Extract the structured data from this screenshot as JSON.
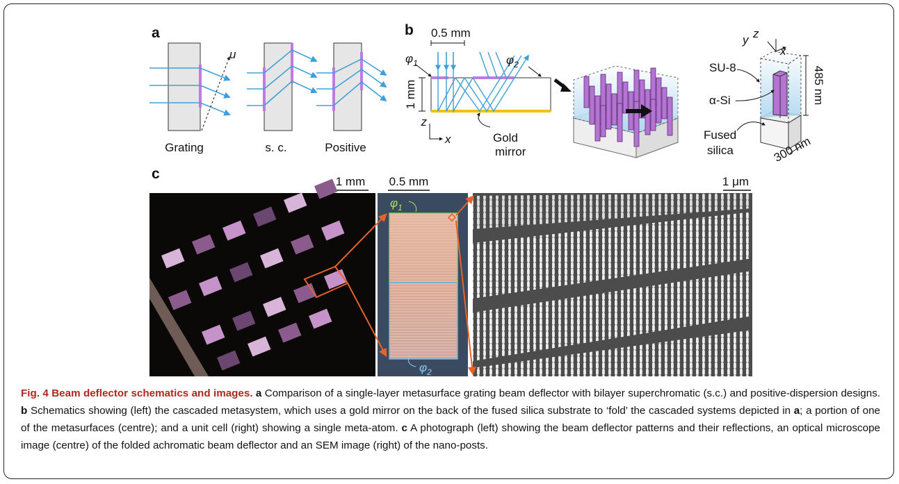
{
  "panel_a": {
    "label": "a",
    "designs": [
      "Grating",
      "s. c.",
      "Positive"
    ],
    "axis": "u"
  },
  "panel_b": {
    "label": "b",
    "scale": "0.5 mm",
    "phi1": {
      "symbol": "φ",
      "sub": "1"
    },
    "phi2": {
      "symbol": "φ",
      "sub": "2"
    },
    "thickness": "1 mm",
    "axis_z": "z",
    "axis_x": "x",
    "mirror": [
      "Gold",
      "mirror"
    ],
    "cell": {
      "su8": "SU-8",
      "asi": "α-Si",
      "height": "485 nm",
      "substrate": [
        "Fused",
        "silica"
      ],
      "width": "300 nm",
      "y": "y",
      "z": "z",
      "x": "x"
    }
  },
  "panel_c": {
    "label": "c",
    "scale_left": "1 mm",
    "scale_centre": "0.5 mm",
    "scale_right": "1 μm",
    "phi1": {
      "symbol": "φ",
      "sub": "1"
    },
    "phi2": {
      "symbol": "φ",
      "sub": "2"
    }
  },
  "caption": {
    "runs": [
      {
        "text": "Fig. 4 Beam deflector schematics and images.",
        "bold": true
      },
      {
        "text": " a",
        "bold": true
      },
      {
        "text": " Comparison of a single-layer metasurface grating beam deflector with bilayer superchromatic (s.c.) and positive-dispersion designs. ",
        "bold": false
      },
      {
        "text": "b",
        "bold": true
      },
      {
        "text": " Schematics showing (left) the cascaded metasystem, which uses a gold mirror on the back of the fused silica substrate to ‘fold’ the cascaded systems depicted in ",
        "bold": false
      },
      {
        "text": "a",
        "bold": true
      },
      {
        "text": "; a portion of one of the metasurfaces (centre); and a unit cell (right) showing a single meta-atom. ",
        "bold": false
      },
      {
        "text": "c",
        "bold": true
      },
      {
        "text": " A photograph (left) showing the beam deflector patterns and their reflections, an optical microscope image (centre) of the folded achromatic beam deflector and an SEM image (right) of the nano-posts.",
        "bold": false
      }
    ]
  }
}
